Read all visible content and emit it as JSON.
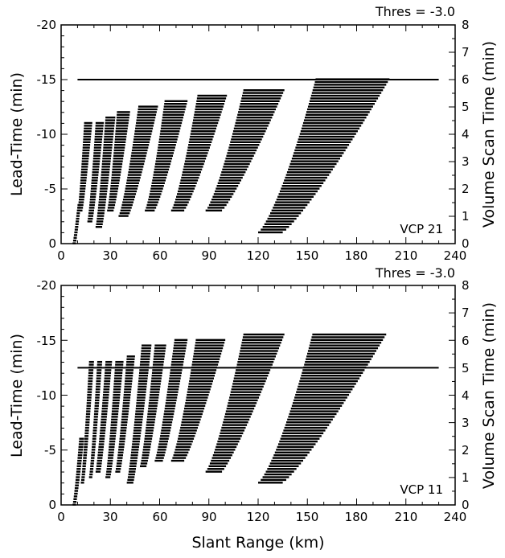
{
  "figure": {
    "xlabel": "Slant Range (km)",
    "panels_note": "Two stacked panels sharing the x axis"
  },
  "chart_data": [
    {
      "type": "bar",
      "orientation": "horizontal-segments",
      "annotation_top": "Thres = -3.0",
      "panel_label": "VCP 21",
      "xlabel": "",
      "ylabel": "Lead-Time (min)",
      "ylabel_right": "Volume Scan Time (min)",
      "xlim": [
        0,
        240
      ],
      "ylim": [
        0,
        -20
      ],
      "ylim_right": [
        0,
        8
      ],
      "xticks": [
        "0",
        "30",
        "60",
        "90",
        "120",
        "150",
        "180",
        "210",
        "240"
      ],
      "yticks": [
        "0",
        "-5",
        "-10",
        "-15",
        "-20"
      ],
      "yticks_right": [
        "0",
        "1",
        "2",
        "3",
        "4",
        "5",
        "6",
        "7",
        "8"
      ],
      "hline": {
        "y": -15,
        "x_range": [
          10,
          230
        ]
      },
      "bands": [
        {
          "x0": 9,
          "x1": 12,
          "y_bottom": 0,
          "y_top": -3.5,
          "w_near": 2,
          "w_far": 2
        },
        {
          "x0": 13,
          "x1": 19,
          "y_bottom": -3.0,
          "y_top": -11.0,
          "w_near": 3,
          "w_far": 5
        },
        {
          "x0": 19,
          "x1": 26,
          "y_bottom": -2.0,
          "y_top": -11.0,
          "w_near": 3,
          "w_far": 5
        },
        {
          "x0": 25,
          "x1": 33,
          "y_bottom": -1.5,
          "y_top": -11.5,
          "w_near": 4,
          "w_far": 6
        },
        {
          "x0": 32,
          "x1": 42,
          "y_bottom": -3.0,
          "y_top": -12.0,
          "w_near": 4,
          "w_far": 8
        },
        {
          "x0": 41,
          "x1": 59,
          "y_bottom": -2.5,
          "y_top": -12.5,
          "w_near": 6,
          "w_far": 12
        },
        {
          "x0": 57,
          "x1": 77,
          "y_bottom": -3.0,
          "y_top": -13.0,
          "w_near": 6,
          "w_far": 14
        },
        {
          "x0": 75,
          "x1": 101,
          "y_bottom": -3.0,
          "y_top": -13.5,
          "w_near": 8,
          "w_far": 18
        },
        {
          "x0": 98,
          "x1": 136,
          "y_bottom": -3.0,
          "y_top": -14.0,
          "w_near": 10,
          "w_far": 25
        },
        {
          "x0": 135,
          "x1": 200,
          "y_bottom": -1.0,
          "y_top": -15.0,
          "w_near": 15,
          "w_far": 45
        }
      ]
    },
    {
      "type": "bar",
      "orientation": "horizontal-segments",
      "annotation_top": "Thres = -3.0",
      "panel_label": "VCP 11",
      "xlabel": "Slant Range (km)",
      "ylabel": "Lead-Time (min)",
      "ylabel_right": "Volume Scan Time (min)",
      "xlim": [
        0,
        240
      ],
      "ylim": [
        0,
        -20
      ],
      "ylim_right": [
        0,
        8
      ],
      "xticks": [
        "0",
        "30",
        "60",
        "90",
        "120",
        "150",
        "180",
        "210",
        "240"
      ],
      "yticks": [
        "0",
        "-5",
        "-10",
        "-15",
        "-20"
      ],
      "yticks_right": [
        "0",
        "1",
        "2",
        "3",
        "4",
        "5",
        "6",
        "7",
        "8"
      ],
      "hline": {
        "y": -12.5,
        "x_range": [
          10,
          230
        ]
      },
      "bands": [
        {
          "x0": 9,
          "x1": 14,
          "y_bottom": 0,
          "y_top": -6.0,
          "w_near": 2,
          "w_far": 3
        },
        {
          "x0": 14,
          "x1": 20,
          "y_bottom": -2.0,
          "y_top": -13.0,
          "w_near": 2,
          "w_far": 3
        },
        {
          "x0": 19,
          "x1": 25,
          "y_bottom": -2.5,
          "y_top": -13.0,
          "w_near": 2,
          "w_far": 3
        },
        {
          "x0": 24,
          "x1": 31,
          "y_bottom": -3.0,
          "y_top": -13.0,
          "w_near": 3,
          "w_far": 4
        },
        {
          "x0": 30,
          "x1": 38,
          "y_bottom": -2.5,
          "y_top": -13.0,
          "w_near": 3,
          "w_far": 5
        },
        {
          "x0": 36,
          "x1": 45,
          "y_bottom": -3.0,
          "y_top": -13.5,
          "w_near": 3,
          "w_far": 5
        },
        {
          "x0": 44,
          "x1": 55,
          "y_bottom": -2.0,
          "y_top": -14.5,
          "w_near": 4,
          "w_far": 6
        },
        {
          "x0": 52,
          "x1": 64,
          "y_bottom": -3.5,
          "y_top": -14.5,
          "w_near": 4,
          "w_far": 7
        },
        {
          "x0": 62,
          "x1": 77,
          "y_bottom": -4.0,
          "y_top": -15.0,
          "w_near": 5,
          "w_far": 8
        },
        {
          "x0": 75,
          "x1": 100,
          "y_bottom": -4.0,
          "y_top": -15.0,
          "w_near": 8,
          "w_far": 18
        },
        {
          "x0": 98,
          "x1": 136,
          "y_bottom": -3.0,
          "y_top": -15.5,
          "w_near": 10,
          "w_far": 25
        },
        {
          "x0": 135,
          "x1": 198,
          "y_bottom": -2.0,
          "y_top": -15.5,
          "w_near": 15,
          "w_far": 45
        }
      ]
    }
  ]
}
